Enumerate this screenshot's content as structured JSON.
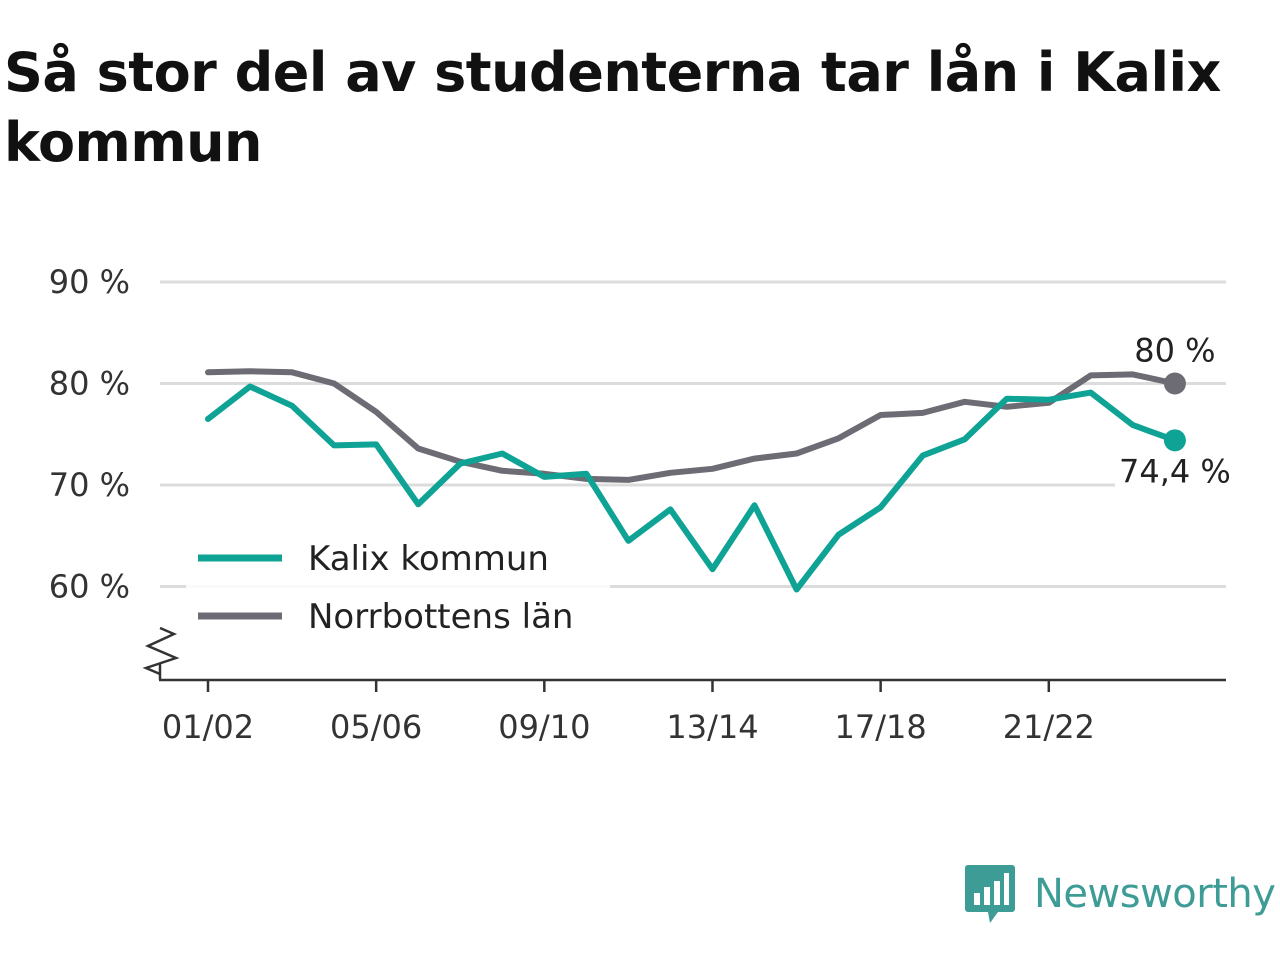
{
  "title": "Så stor del av studenterna tar lån i Kalix kommun",
  "brand": {
    "name": "Newsworthy",
    "icon": "bar-chart-speech-bubble-icon",
    "color": "#3e9c96"
  },
  "chart_data": {
    "type": "line",
    "title": "Så stor del av studenterna tar lån i Kalix kommun",
    "xlabel": "",
    "ylabel": "",
    "ylim": [
      50,
      90
    ],
    "y_ticks": [
      60,
      70,
      80,
      90
    ],
    "y_tick_labels": [
      "60 %",
      "70 %",
      "80 %",
      "90 %"
    ],
    "y_axis_break": true,
    "grid": true,
    "legend": "bottom-left",
    "x": [
      "01/02",
      "02/03",
      "03/04",
      "04/05",
      "05/06",
      "06/07",
      "07/08",
      "08/09",
      "09/10",
      "10/11",
      "11/12",
      "12/13",
      "13/14",
      "14/15",
      "15/16",
      "16/17",
      "17/18",
      "18/19",
      "19/20",
      "20/21",
      "21/22",
      "22/23",
      "23/24",
      "24/25"
    ],
    "x_tick_labels": [
      "01/02",
      "05/06",
      "09/10",
      "13/14",
      "17/18",
      "21/22"
    ],
    "series": [
      {
        "name": "Kalix kommun",
        "color": "#0fa396",
        "values": [
          76.5,
          79.7,
          77.8,
          73.9,
          74.0,
          68.1,
          72.1,
          73.1,
          70.8,
          71.1,
          64.5,
          67.6,
          61.7,
          68.0,
          59.7,
          65.1,
          67.8,
          72.9,
          74.5,
          78.5,
          78.4,
          79.1,
          75.9,
          74.4
        ],
        "end_label": "74,4 %"
      },
      {
        "name": "Norrbottens län",
        "color": "#6d6b73",
        "values": [
          81.1,
          81.2,
          81.1,
          80.0,
          77.2,
          73.6,
          72.3,
          71.4,
          71.1,
          70.6,
          70.5,
          71.2,
          71.6,
          72.6,
          73.1,
          74.6,
          76.9,
          77.1,
          78.2,
          77.7,
          78.1,
          80.8,
          80.9,
          80.0
        ],
        "end_label": "80 %"
      }
    ]
  }
}
